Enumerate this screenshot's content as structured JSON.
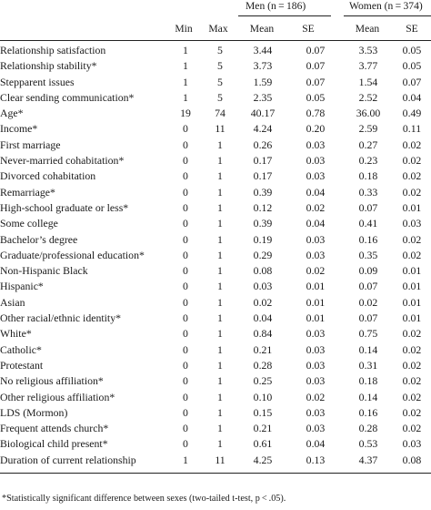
{
  "header": {
    "groups": {
      "men": "Men (n = 186)",
      "women": "Women (n = 374)"
    },
    "columns": {
      "min": "Min",
      "max": "Max",
      "men_mean": "Mean",
      "men_se": "SE",
      "women_mean": "Mean",
      "women_se": "SE"
    }
  },
  "rows": [
    {
      "label": "Relationship satisfaction",
      "min": "1",
      "max": "5",
      "men_mean": "3.44",
      "men_se": "0.07",
      "women_mean": "3.53",
      "women_se": "0.05"
    },
    {
      "label": "Relationship stability*",
      "min": "1",
      "max": "5",
      "men_mean": "3.73",
      "men_se": "0.07",
      "women_mean": "3.77",
      "women_se": "0.05"
    },
    {
      "label": "Stepparent issues",
      "min": "1",
      "max": "5",
      "men_mean": "1.59",
      "men_se": "0.07",
      "women_mean": "1.54",
      "women_se": "0.07"
    },
    {
      "label": "Clear sending communication*",
      "min": "1",
      "max": "5",
      "men_mean": "2.35",
      "men_se": "0.05",
      "women_mean": "2.52",
      "women_se": "0.04"
    },
    {
      "label": "Age*",
      "min": "19",
      "max": "74",
      "men_mean": "40.17",
      "men_se": "0.78",
      "women_mean": "36.00",
      "women_se": "0.49"
    },
    {
      "label": "Income*",
      "min": "0",
      "max": "11",
      "men_mean": "4.24",
      "men_se": "0.20",
      "women_mean": "2.59",
      "women_se": "0.11"
    },
    {
      "label": "First marriage",
      "min": "0",
      "max": "1",
      "men_mean": "0.26",
      "men_se": "0.03",
      "women_mean": "0.27",
      "women_se": "0.02"
    },
    {
      "label": "Never-married cohabitation*",
      "min": "0",
      "max": "1",
      "men_mean": "0.17",
      "men_se": "0.03",
      "women_mean": "0.23",
      "women_se": "0.02"
    },
    {
      "label": "Divorced cohabitation",
      "min": "0",
      "max": "1",
      "men_mean": "0.17",
      "men_se": "0.03",
      "women_mean": "0.18",
      "women_se": "0.02"
    },
    {
      "label": "Remarriage*",
      "min": "0",
      "max": "1",
      "men_mean": "0.39",
      "men_se": "0.04",
      "women_mean": "0.33",
      "women_se": "0.02"
    },
    {
      "label": "High-school graduate or less*",
      "min": "0",
      "max": "1",
      "men_mean": "0.12",
      "men_se": "0.02",
      "women_mean": "0.07",
      "women_se": "0.01"
    },
    {
      "label": "Some college",
      "min": "0",
      "max": "1",
      "men_mean": "0.39",
      "men_se": "0.04",
      "women_mean": "0.41",
      "women_se": "0.03"
    },
    {
      "label": "Bachelor’s degree",
      "min": "0",
      "max": "1",
      "men_mean": "0.19",
      "men_se": "0.03",
      "women_mean": "0.16",
      "women_se": "0.02"
    },
    {
      "label": "Graduate/professional education*",
      "min": "0",
      "max": "1",
      "men_mean": "0.29",
      "men_se": "0.03",
      "women_mean": "0.35",
      "women_se": "0.02"
    },
    {
      "label": "Non-Hispanic Black",
      "min": "0",
      "max": "1",
      "men_mean": "0.08",
      "men_se": "0.02",
      "women_mean": "0.09",
      "women_se": "0.01"
    },
    {
      "label": "Hispanic*",
      "min": "0",
      "max": "1",
      "men_mean": "0.03",
      "men_se": "0.01",
      "women_mean": "0.07",
      "women_se": "0.01"
    },
    {
      "label": "Asian",
      "min": "0",
      "max": "1",
      "men_mean": "0.02",
      "men_se": "0.01",
      "women_mean": "0.02",
      "women_se": "0.01"
    },
    {
      "label": "Other racial/ethnic identity*",
      "min": "0",
      "max": "1",
      "men_mean": "0.04",
      "men_se": "0.01",
      "women_mean": "0.07",
      "women_se": "0.01"
    },
    {
      "label": "White*",
      "min": "0",
      "max": "1",
      "men_mean": "0.84",
      "men_se": "0.03",
      "women_mean": "0.75",
      "women_se": "0.02"
    },
    {
      "label": "Catholic*",
      "min": "0",
      "max": "1",
      "men_mean": "0.21",
      "men_se": "0.03",
      "women_mean": "0.14",
      "women_se": "0.02"
    },
    {
      "label": "Protestant",
      "min": "0",
      "max": "1",
      "men_mean": "0.28",
      "men_se": "0.03",
      "women_mean": "0.31",
      "women_se": "0.02"
    },
    {
      "label": "No religious affiliation*",
      "min": "0",
      "max": "1",
      "men_mean": "0.25",
      "men_se": "0.03",
      "women_mean": "0.18",
      "women_se": "0.02"
    },
    {
      "label": "Other religious affiliation*",
      "min": "0",
      "max": "1",
      "men_mean": "0.10",
      "men_se": "0.02",
      "women_mean": "0.14",
      "women_se": "0.02"
    },
    {
      "label": "LDS (Mormon)",
      "min": "0",
      "max": "1",
      "men_mean": "0.15",
      "men_se": "0.03",
      "women_mean": "0.16",
      "women_se": "0.02"
    },
    {
      "label": "Frequent attends church*",
      "min": "0",
      "max": "1",
      "men_mean": "0.21",
      "men_se": "0.03",
      "women_mean": "0.28",
      "women_se": "0.02"
    },
    {
      "label": "Biological child present*",
      "min": "0",
      "max": "1",
      "men_mean": "0.61",
      "men_se": "0.04",
      "women_mean": "0.53",
      "women_se": "0.03"
    },
    {
      "label": "Duration of current relationship",
      "min": "1",
      "max": "11",
      "men_mean": "4.25",
      "men_se": "0.13",
      "women_mean": "4.37",
      "women_se": "0.08"
    }
  ],
  "footnote": "*Statistically significant difference between sexes (two-tailed t-test, p < .05)."
}
